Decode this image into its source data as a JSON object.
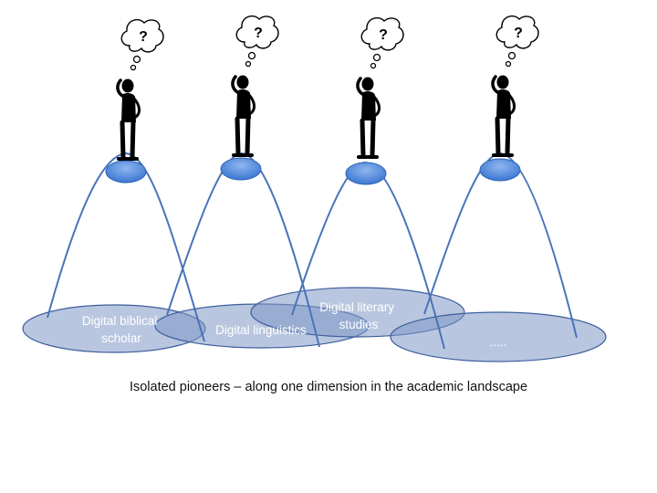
{
  "regions": [
    {
      "lines": [
        "Digital biblical",
        "scholar"
      ]
    },
    {
      "lines": [
        "Digital linguistics"
      ]
    },
    {
      "lines": [
        "Digital literary",
        "studies"
      ]
    },
    {
      "lines": [
        "....."
      ]
    }
  ],
  "thought_glyph": "?",
  "caption": "Isolated pioneers – along one dimension in the academic landscape",
  "colors": {
    "region_fill": "#7e96c4",
    "curve": "#4a74b8",
    "peak": "#4a86d8",
    "figure": "#000000"
  }
}
